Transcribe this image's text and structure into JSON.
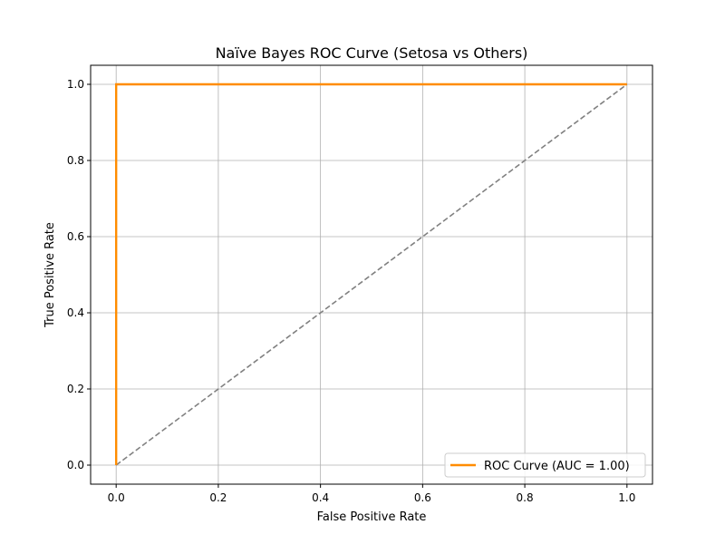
{
  "chart_data": {
    "type": "line",
    "title": "Naïve Bayes ROC Curve (Setosa vs Others)",
    "xlabel": "False Positive Rate",
    "ylabel": "True Positive Rate",
    "xlim": [
      -0.05,
      1.05
    ],
    "ylim": [
      -0.05,
      1.05
    ],
    "xticks": [
      0.0,
      0.2,
      0.4,
      0.6,
      0.8,
      1.0
    ],
    "yticks": [
      0.0,
      0.2,
      0.4,
      0.6,
      0.8,
      1.0
    ],
    "xtick_labels": [
      "0.0",
      "0.2",
      "0.4",
      "0.6",
      "0.8",
      "1.0"
    ],
    "ytick_labels": [
      "0.0",
      "0.2",
      "0.4",
      "0.6",
      "0.8",
      "1.0"
    ],
    "grid": true,
    "legend_position": "lower-right",
    "series": [
      {
        "name": "ROC Curve (AUC = 1.00)",
        "x": [
          0.0,
          0.0,
          1.0
        ],
        "y": [
          0.0,
          1.0,
          1.0
        ],
        "color": "#ff8c00",
        "style": "solid"
      },
      {
        "x": [
          0.0,
          1.0
        ],
        "y": [
          0.0,
          1.0
        ],
        "color": "#808080",
        "style": "dashed"
      }
    ]
  }
}
